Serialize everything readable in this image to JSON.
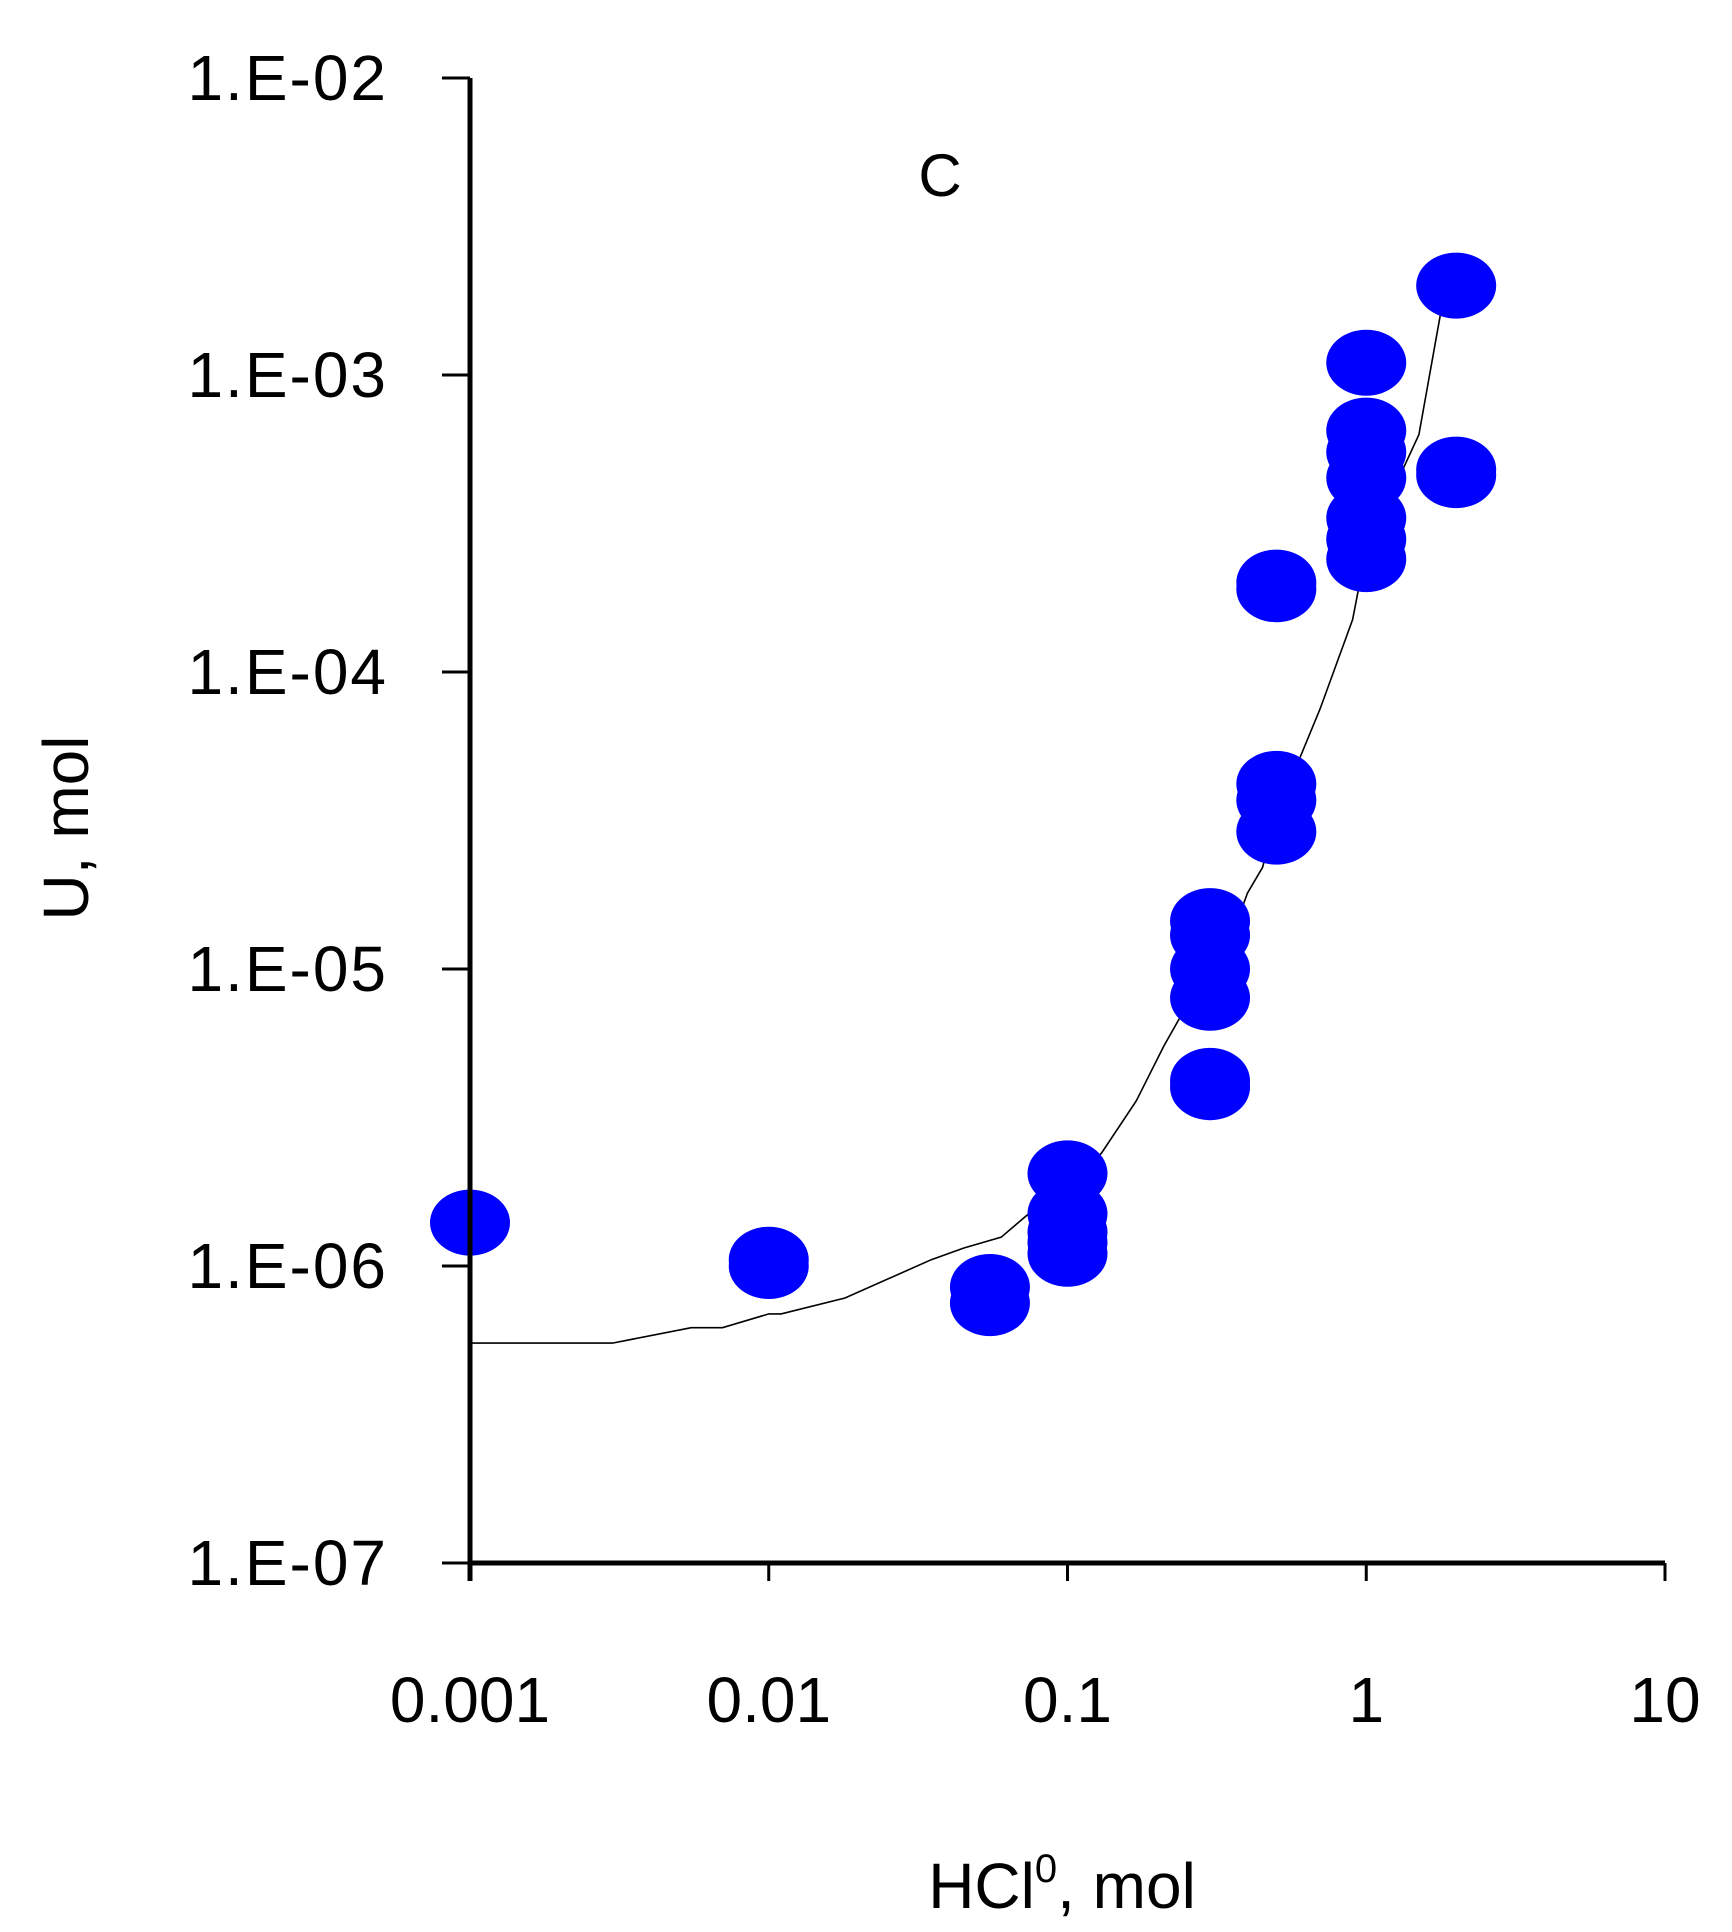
{
  "chart_data": {
    "type": "scatter",
    "title": "",
    "annotations": [
      "C"
    ],
    "xlabel": "HCl",
    "xlabel_superscript": "0",
    "xlabel_suffix": ", mol",
    "ylabel": "U, mol",
    "x_scale": "log",
    "y_scale": "log",
    "xlim": [
      0.001,
      10
    ],
    "ylim": [
      1e-07,
      0.01
    ],
    "xticks": [
      0.001,
      0.01,
      0.1,
      1,
      10
    ],
    "xtick_labels": [
      "0.001",
      "0.01",
      "0.1",
      "1",
      "10"
    ],
    "yticks": [
      1e-07,
      1e-06,
      1e-05,
      0.0001,
      0.001,
      0.01
    ],
    "ytick_labels": [
      "1.E-07",
      "1.E-06",
      "1.E-05",
      "1.E-04",
      "1.E-03",
      "1.E-02"
    ],
    "grid": false,
    "legend": "none",
    "colors": {
      "points": "#0000ff",
      "fit_line": "#000000",
      "axes": "#000000"
    },
    "series": [
      {
        "kind": "scatter",
        "points": [
          {
            "x": 0.001,
            "y": 1.4e-06
          },
          {
            "x": 0.01,
            "y": 1.05e-06
          },
          {
            "x": 0.01,
            "y": 1e-06
          },
          {
            "x": 0.055,
            "y": 8.5e-07
          },
          {
            "x": 0.055,
            "y": 7.5e-07
          },
          {
            "x": 0.1,
            "y": 2.05e-06
          },
          {
            "x": 0.1,
            "y": 1.5e-06
          },
          {
            "x": 0.1,
            "y": 1.3e-06
          },
          {
            "x": 0.1,
            "y": 1.2e-06
          },
          {
            "x": 0.1,
            "y": 1.1e-06
          },
          {
            "x": 0.3,
            "y": 1.45e-05
          },
          {
            "x": 0.3,
            "y": 1.3e-05
          },
          {
            "x": 0.3,
            "y": 1e-05
          },
          {
            "x": 0.3,
            "y": 8e-06
          },
          {
            "x": 0.3,
            "y": 4.2e-06
          },
          {
            "x": 0.3,
            "y": 4e-06
          },
          {
            "x": 0.5,
            "y": 0.0002
          },
          {
            "x": 0.5,
            "y": 0.00019
          },
          {
            "x": 0.5,
            "y": 4.2e-05
          },
          {
            "x": 0.5,
            "y": 3.7e-05
          },
          {
            "x": 0.5,
            "y": 2.9e-05
          },
          {
            "x": 1.0,
            "y": 0.0011
          },
          {
            "x": 1.0,
            "y": 0.00065
          },
          {
            "x": 1.0,
            "y": 0.00055
          },
          {
            "x": 1.0,
            "y": 0.00045
          },
          {
            "x": 1.0,
            "y": 0.00033
          },
          {
            "x": 1.0,
            "y": 0.00028
          },
          {
            "x": 1.0,
            "y": 0.00024
          },
          {
            "x": 2.0,
            "y": 0.002
          },
          {
            "x": 2.0,
            "y": 0.00048
          },
          {
            "x": 2.0,
            "y": 0.00046
          }
        ]
      },
      {
        "kind": "line",
        "x": [
          0.001,
          0.003,
          0.0055,
          0.007,
          0.01,
          0.011,
          0.018,
          0.035,
          0.045,
          0.06,
          0.08,
          0.1,
          0.13,
          0.17,
          0.21,
          0.25,
          0.3,
          0.37,
          0.4,
          0.45,
          0.5,
          0.7,
          0.9,
          1.0,
          1.5,
          1.8
        ],
        "y": [
          5.5e-07,
          5.5e-07,
          6.2e-07,
          6.2e-07,
          6.9e-07,
          6.9e-07,
          7.8e-07,
          1.05e-06,
          1.15e-06,
          1.25e-06,
          1.6e-06,
          1.85e-06,
          2.4e-06,
          3.6e-06,
          5.5e-06,
          7.5e-06,
          9.8e-06,
          1.45e-05,
          1.8e-05,
          2.2e-05,
          3.3e-05,
          7.5e-05,
          0.00015,
          0.00026,
          0.00063,
          0.00175
        ]
      }
    ]
  }
}
